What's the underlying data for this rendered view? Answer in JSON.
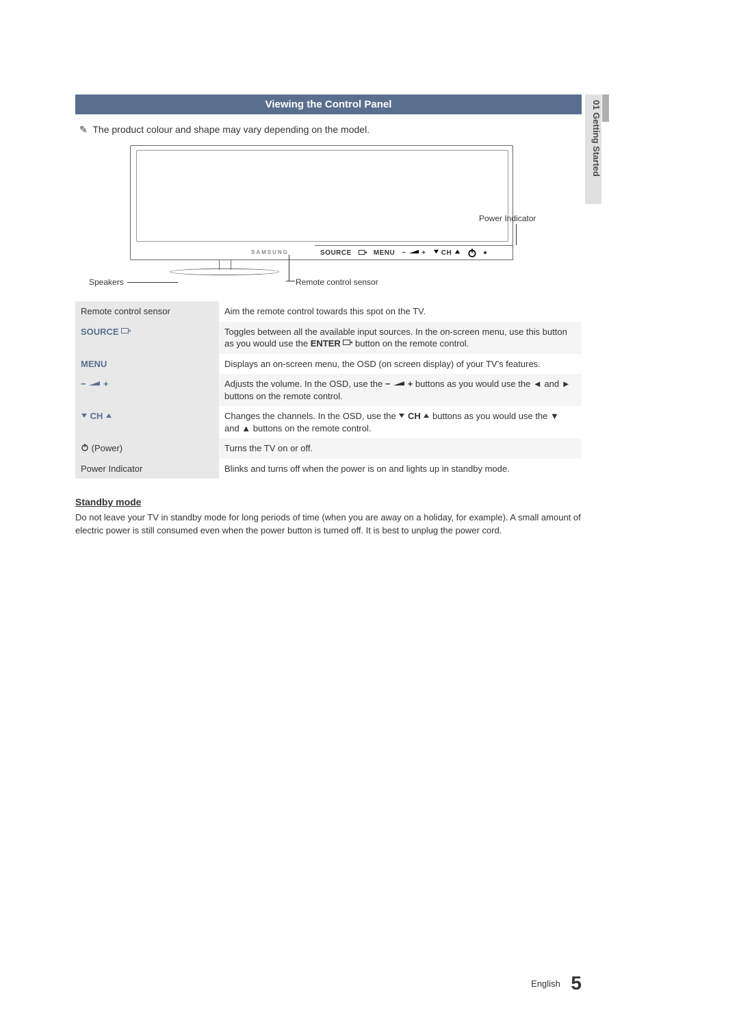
{
  "side_tab": "01  Getting Started",
  "section_title": "Viewing the Control Panel",
  "note_text": "The product colour and shape may vary depending on the model.",
  "diagram": {
    "brand": "SAMSUNG",
    "strip": {
      "source": "SOURCE",
      "menu": "MENU",
      "ch": "CH"
    },
    "callouts": {
      "power_indicator": "Power Indicator",
      "speakers": "Speakers",
      "sensor": "Remote control sensor"
    }
  },
  "rows": [
    {
      "label_html": "Remote control sensor",
      "desc_html": "Aim the remote control towards this spot on the TV."
    },
    {
      "label_html": "<span class='bold-label'>SOURCE <svg width='14' height='10' viewBox='0 0 14 10'><rect x='0.5' y='0.5' width='10' height='7' fill='none' stroke='#5a6f8f'/><path d='M11 4 L14 4 M12.5 2.5 L14 4 L12.5 5.5' fill='none' stroke='#5a6f8f'/></svg></span>",
      "desc_html": "Toggles between all the available input sources. In the on-screen menu, use this button as you would use the <b>ENTER <svg width='14' height='10' viewBox='0 0 14 10'><rect x='0.5' y='0.5' width='10' height='7' fill='none' stroke='#333'/><path d='M11 4 L14 4 M12.5 2.5 L14 4 L12.5 5.5' fill='none' stroke='#333'/></svg></b> button on the remote control."
    },
    {
      "label_html": "<span class='bold-label'>MENU</span>",
      "desc_html": "Displays an on-screen menu, the OSD (on screen display) of your TV's features."
    },
    {
      "label_html": "<span class='bold-label'>&minus; <svg width='18' height='10' viewBox='0 0 18 10'><path d='M1 8 L17 2 L17 8 Z' fill='#5a6f8f'/></svg> +</span>",
      "desc_html": "Adjusts the volume. In the OSD, use the <b>&minus; <svg width='18' height='10' viewBox='0 0 18 10'><path d='M1 8 L17 2 L17 8 Z' fill='#333'/></svg> +</b> buttons as you would use the ◄ and ► buttons on the remote control."
    },
    {
      "label_html": "<span class='bold-label'><svg width='10' height='10' viewBox='0 0 10 10'><path d='M1 2 L9 2 L5 8 Z' fill='#5a6f8f'/></svg> CH <svg width='10' height='10' viewBox='0 0 10 10'><path d='M1 8 L9 8 L5 2 Z' fill='#5a6f8f'/></svg></span>",
      "desc_html": "Changes the channels. In the OSD, use the <b><svg width='10' height='10' viewBox='0 0 10 10'><path d='M1 2 L9 2 L5 8 Z' fill='#333'/></svg> CH <svg width='10' height='10' viewBox='0 0 10 10'><path d='M1 8 L9 8 L5 2 Z' fill='#333'/></svg></b> buttons as you would use the ▼ and ▲ buttons on the remote control."
    },
    {
      "label_html": "<svg width='12' height='12' viewBox='0 0 12 12'><circle cx='6' cy='7' r='4' fill='none' stroke='#333' stroke-width='1.4'/><line x1='6' y1='1' x2='6' y2='6' stroke='#333' stroke-width='1.4'/></svg> (Power)",
      "desc_html": "Turns the TV on or off."
    },
    {
      "label_html": "Power Indicator",
      "desc_html": "Blinks and turns off when the power is on and lights up in standby mode."
    }
  ],
  "standby_heading": "Standby mode",
  "standby_text": "Do not leave your TV in standby mode for long periods of time (when you are away on a holiday, for example). A small amount of electric power is still consumed even when the power button is turned off. It is best to unplug the power cord.",
  "footer_lang": "English",
  "footer_page": "5"
}
